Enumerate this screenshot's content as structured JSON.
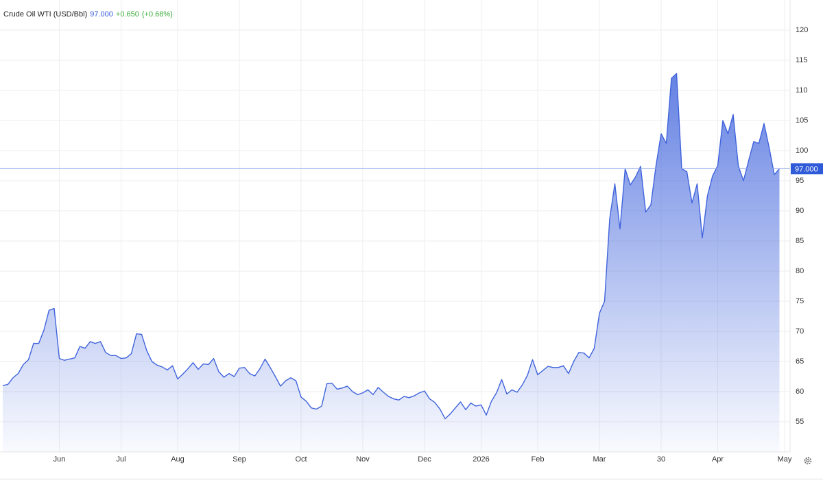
{
  "chart_data": {
    "type": "area",
    "title": "Crude Oil WTI (USD/Bbl)",
    "last_price": {
      "value": 97,
      "label": "97.000"
    },
    "change_label": "+0.650",
    "change_pct_label": "(+0.68%)",
    "color": "#3f63dc",
    "grid": true,
    "ylim": [
      50,
      125
    ],
    "yticks": [
      55,
      60,
      65,
      70,
      75,
      80,
      85,
      90,
      95,
      100,
      105,
      110,
      115,
      120
    ],
    "categories": [
      null,
      null,
      null,
      null,
      null,
      null,
      null,
      null,
      null,
      null,
      null,
      "Jun",
      null,
      null,
      null,
      null,
      null,
      null,
      null,
      null,
      null,
      null,
      null,
      "Jul",
      null,
      null,
      null,
      null,
      null,
      null,
      null,
      null,
      null,
      null,
      "Aug",
      null,
      null,
      null,
      null,
      null,
      null,
      null,
      null,
      null,
      null,
      null,
      "Sep",
      null,
      null,
      null,
      null,
      null,
      null,
      null,
      null,
      null,
      null,
      null,
      "Oct",
      null,
      null,
      null,
      null,
      null,
      null,
      null,
      null,
      null,
      null,
      null,
      "Nov",
      null,
      null,
      null,
      null,
      null,
      null,
      null,
      null,
      null,
      null,
      null,
      "Dec",
      null,
      null,
      null,
      null,
      null,
      null,
      null,
      null,
      null,
      null,
      "2026",
      null,
      null,
      null,
      null,
      null,
      null,
      null,
      null,
      null,
      null,
      "Feb",
      null,
      null,
      null,
      null,
      null,
      null,
      null,
      null,
      null,
      null,
      null,
      "Mar",
      null,
      null,
      null,
      null,
      null,
      null,
      null,
      null,
      null,
      null,
      null,
      "30",
      null,
      null,
      null,
      null,
      null,
      null,
      null,
      null,
      null,
      null,
      "Apr",
      null,
      null,
      null,
      null,
      null,
      null,
      null,
      null,
      null,
      null,
      null,
      null,
      "May"
    ],
    "values": [
      61,
      61.2,
      62.3,
      63,
      64.5,
      65.3,
      68,
      68,
      70.2,
      73.5,
      73.8,
      65.5,
      65.2,
      65.4,
      65.6,
      67.5,
      67.2,
      68.3,
      68,
      68.3,
      66.5,
      66,
      66,
      65.5,
      65.6,
      66.3,
      69.6,
      69.5,
      66.8,
      65,
      64.4,
      64.1,
      63.6,
      64.3,
      62.1,
      62.9,
      63.8,
      64.8,
      63.7,
      64.6,
      64.5,
      65.5,
      63.3,
      62.4,
      63,
      62.5,
      63.9,
      64,
      63,
      62.6,
      63.8,
      65.4,
      64,
      62.5,
      60.9,
      61.8,
      62.3,
      61.8,
      59.1,
      58.4,
      57.3,
      57.1,
      57.6,
      61.3,
      61.4,
      60.4,
      60.6,
      60.9,
      60,
      59.5,
      59.8,
      60.3,
      59.5,
      60.7,
      59.9,
      59.2,
      58.8,
      58.6,
      59.2,
      59,
      59.3,
      59.8,
      60.1,
      58.8,
      58.2,
      57.1,
      55.5,
      56.3,
      57.3,
      58.3,
      57,
      58.1,
      57.6,
      57.8,
      56.1,
      58.4,
      59.8,
      62,
      59.6,
      60.3,
      59.9,
      61.1,
      62.7,
      65.3,
      62.8,
      63.5,
      64.2,
      64,
      64,
      64.3,
      63,
      65,
      66.5,
      66.4,
      65.6,
      67.2,
      73,
      75,
      88.7,
      94.5,
      87,
      97,
      94.3,
      95.6,
      97.4,
      89.8,
      91,
      97.5,
      102.8,
      101.2,
      112,
      112.8,
      97,
      96.5,
      91.3,
      94.5,
      85.5,
      92.5,
      95.8,
      97.5,
      105,
      102.8,
      106,
      97.5,
      95,
      98.3,
      101.5,
      101.2,
      104.5,
      100.5,
      96,
      97,
      null
    ]
  }
}
